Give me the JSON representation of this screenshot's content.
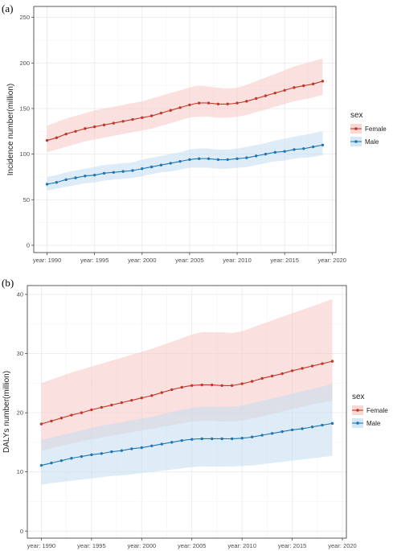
{
  "colors": {
    "female_line": "#c0392b",
    "female_ribbon": "#f5c6c3",
    "male_line": "#1f77b4",
    "male_ribbon": "#c3dcf0"
  },
  "chart_data": [
    {
      "panel_label": "(a)",
      "type": "line",
      "ylabel": "Incidence number(million)",
      "ylim": [
        -8,
        262
      ],
      "xlim": [
        1988.6,
        2020.4
      ],
      "yticks": [
        0,
        50,
        100,
        150,
        200,
        250
      ],
      "xticks": [
        1990,
        1995,
        2000,
        2005,
        2010,
        2015,
        2020
      ],
      "xtick_labels": [
        "year: 1990",
        "year: 1995",
        "year: 2000",
        "year: 2005",
        "year: 2010",
        "year: 2015",
        "year: 2020"
      ],
      "legend": {
        "title": "sex",
        "position": "right"
      },
      "grid": true,
      "x": [
        1990,
        1991,
        1992,
        1993,
        1994,
        1995,
        1996,
        1997,
        1998,
        1999,
        2000,
        2001,
        2002,
        2003,
        2004,
        2005,
        2006,
        2007,
        2008,
        2009,
        2010,
        2011,
        2012,
        2013,
        2014,
        2015,
        2016,
        2017,
        2018,
        2019
      ],
      "series": [
        {
          "name": "Female",
          "values": [
            115,
            118,
            122,
            125,
            128,
            130,
            132,
            134,
            136,
            138,
            140,
            142,
            145,
            148,
            151,
            154,
            156,
            156,
            155,
            155,
            156,
            158,
            161,
            164,
            167,
            170,
            173,
            175,
            177,
            180
          ],
          "lower": [
            102,
            105,
            108,
            111,
            114,
            116,
            118,
            120,
            122,
            124,
            126,
            128,
            131,
            134,
            137,
            140,
            141,
            141,
            140,
            140,
            141,
            143,
            146,
            149,
            152,
            155,
            158,
            160,
            162,
            165
          ],
          "upper": [
            131,
            135,
            139,
            142,
            145,
            148,
            150,
            152,
            154,
            156,
            158,
            161,
            164,
            167,
            170,
            173,
            175,
            174,
            173,
            172,
            173,
            176,
            180,
            184,
            188,
            192,
            196,
            199,
            202,
            205
          ]
        },
        {
          "name": "Male",
          "values": [
            67,
            69,
            72,
            74,
            76,
            77,
            79,
            80,
            81,
            82,
            84,
            86,
            88,
            90,
            92,
            94,
            95,
            95,
            94,
            94,
            95,
            96,
            98,
            100,
            102,
            103,
            105,
            106,
            108,
            110
          ],
          "lower": [
            60,
            62,
            64,
            66,
            68,
            69,
            71,
            72,
            73,
            74,
            76,
            78,
            80,
            81,
            83,
            85,
            85,
            85,
            84,
            84,
            85,
            86,
            88,
            90,
            92,
            93,
            95,
            96,
            97,
            99
          ],
          "upper": [
            75,
            77,
            80,
            82,
            84,
            86,
            88,
            89,
            90,
            91,
            94,
            96,
            98,
            100,
            102,
            105,
            106,
            106,
            105,
            105,
            106,
            108,
            110,
            112,
            115,
            117,
            119,
            121,
            123,
            125
          ]
        }
      ]
    },
    {
      "panel_label": "(b)",
      "type": "line",
      "ylabel": "DALYs number(million)",
      "ylim": [
        -1.2,
        41.5
      ],
      "xlim": [
        1988.6,
        2020.4
      ],
      "yticks": [
        0,
        10,
        20,
        30,
        40
      ],
      "xticks": [
        1990,
        1995,
        2000,
        2005,
        2010,
        2015,
        2020
      ],
      "xtick_labels": [
        "year: 1990",
        "year: 1995",
        "year: 2000",
        "year: 2005",
        "year: 2010",
        "year: 2015",
        "year: 2020"
      ],
      "legend": {
        "title": "sex",
        "position": "right"
      },
      "grid": true,
      "x": [
        1990,
        1991,
        1992,
        1993,
        1994,
        1995,
        1996,
        1997,
        1998,
        1999,
        2000,
        2001,
        2002,
        2003,
        2004,
        2005,
        2006,
        2007,
        2008,
        2009,
        2010,
        2011,
        2012,
        2013,
        2014,
        2015,
        2016,
        2017,
        2018,
        2019
      ],
      "series": [
        {
          "name": "Female",
          "values": [
            18.1,
            18.6,
            19.1,
            19.6,
            20.0,
            20.5,
            20.9,
            21.3,
            21.7,
            22.1,
            22.5,
            22.9,
            23.4,
            23.9,
            24.3,
            24.6,
            24.7,
            24.7,
            24.6,
            24.6,
            24.9,
            25.3,
            25.8,
            26.2,
            26.6,
            27.1,
            27.5,
            27.9,
            28.3,
            28.7
          ],
          "lower": [
            13.6,
            14.0,
            14.4,
            14.8,
            15.2,
            15.5,
            15.8,
            16.1,
            16.4,
            16.7,
            17.0,
            17.3,
            17.6,
            17.9,
            18.2,
            18.5,
            18.6,
            18.6,
            18.5,
            18.5,
            18.7,
            19.0,
            19.4,
            19.8,
            20.2,
            20.6,
            21.0,
            21.4,
            21.7,
            22.0
          ],
          "upper": [
            25.0,
            25.6,
            26.2,
            26.8,
            27.3,
            27.8,
            28.3,
            28.8,
            29.3,
            29.8,
            30.3,
            30.8,
            31.4,
            32.0,
            32.6,
            33.2,
            33.6,
            33.6,
            33.6,
            33.5,
            33.8,
            34.4,
            35.0,
            35.6,
            36.2,
            36.8,
            37.4,
            38.0,
            38.6,
            39.2
          ]
        },
        {
          "name": "Male",
          "values": [
            11.1,
            11.5,
            11.9,
            12.3,
            12.6,
            12.9,
            13.1,
            13.4,
            13.6,
            13.9,
            14.1,
            14.4,
            14.7,
            15.0,
            15.3,
            15.5,
            15.6,
            15.6,
            15.6,
            15.6,
            15.7,
            15.9,
            16.2,
            16.5,
            16.8,
            17.1,
            17.3,
            17.6,
            17.9,
            18.2
          ],
          "lower": [
            7.8,
            8.1,
            8.3,
            8.5,
            8.7,
            8.9,
            9.1,
            9.3,
            9.4,
            9.6,
            9.8,
            10.0,
            10.2,
            10.4,
            10.6,
            10.8,
            10.9,
            10.9,
            10.9,
            10.9,
            11.0,
            11.1,
            11.3,
            11.5,
            11.7,
            11.9,
            12.1,
            12.3,
            12.5,
            12.7
          ],
          "upper": [
            15.4,
            15.8,
            16.2,
            16.6,
            17.0,
            17.4,
            17.8,
            18.1,
            18.4,
            18.7,
            19.0,
            19.3,
            19.7,
            20.1,
            20.5,
            20.8,
            21.0,
            21.0,
            21.0,
            21.0,
            21.2,
            21.6,
            22.0,
            22.4,
            22.8,
            23.2,
            23.6,
            24.0,
            24.4,
            24.9
          ]
        }
      ]
    }
  ]
}
